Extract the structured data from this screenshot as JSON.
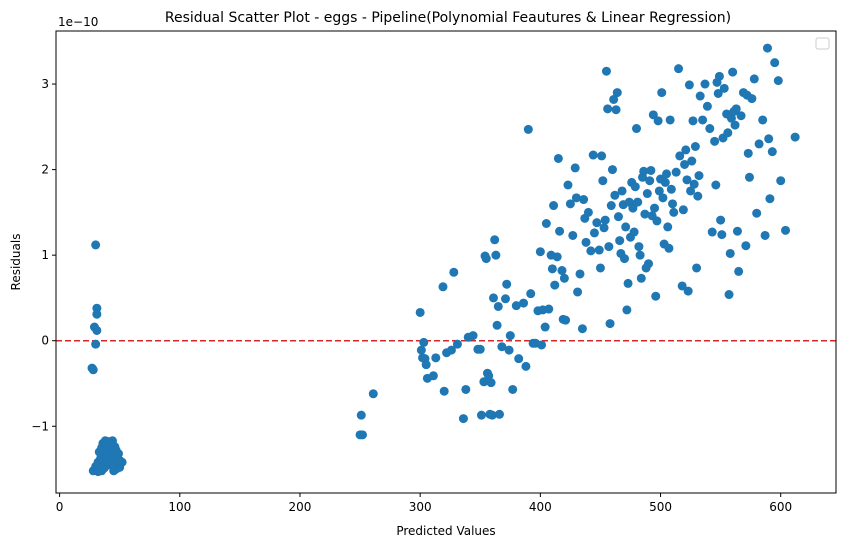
{
  "chart_data": {
    "type": "scatter",
    "title": "Residual Scatter Plot - eggs  - Pipeline(Polynomial Feautures & Linear Regression)",
    "xlabel": "Predicted Values",
    "ylabel": "Residuals",
    "y_offset_label": "1e−10",
    "xlim": [
      -3,
      646
    ],
    "ylim": [
      -1.78,
      3.62
    ],
    "xticks": [
      0,
      100,
      200,
      300,
      400,
      500,
      600
    ],
    "yticks": [
      -1,
      0,
      1,
      2,
      3
    ],
    "xtick_labels": [
      "0",
      "100",
      "200",
      "300",
      "400",
      "500",
      "600"
    ],
    "ytick_labels": [
      "−1",
      "0",
      "1",
      "2",
      "3"
    ],
    "grid": false,
    "legend": "top-right (empty)",
    "marker_color": "#1f77b4",
    "reference_line": {
      "y": 0,
      "color": "#d62728",
      "style": "dashed"
    },
    "points": [
      [
        30,
        1.12
      ],
      [
        31,
        0.38
      ],
      [
        31,
        0.31
      ],
      [
        29,
        0.16
      ],
      [
        31,
        0.12
      ],
      [
        27,
        -0.32
      ],
      [
        28,
        -0.34
      ],
      [
        30,
        -0.04
      ],
      [
        28,
        -1.52
      ],
      [
        30,
        -1.47
      ],
      [
        32,
        -1.42
      ],
      [
        34,
        -1.38
      ],
      [
        36,
        -1.34
      ],
      [
        38,
        -1.3
      ],
      [
        40,
        -1.26
      ],
      [
        42,
        -1.22
      ],
      [
        44,
        -1.2
      ],
      [
        46,
        -1.24
      ],
      [
        31,
        -1.5
      ],
      [
        33,
        -1.46
      ],
      [
        35,
        -1.43
      ],
      [
        37,
        -1.39
      ],
      [
        39,
        -1.35
      ],
      [
        41,
        -1.31
      ],
      [
        43,
        -1.27
      ],
      [
        45,
        -1.33
      ],
      [
        47,
        -1.37
      ],
      [
        32,
        -1.53
      ],
      [
        34,
        -1.5
      ],
      [
        36,
        -1.47
      ],
      [
        38,
        -1.44
      ],
      [
        40,
        -1.41
      ],
      [
        42,
        -1.38
      ],
      [
        44,
        -1.35
      ],
      [
        46,
        -1.41
      ],
      [
        48,
        -1.45
      ],
      [
        35,
        -1.52
      ],
      [
        37,
        -1.49
      ],
      [
        39,
        -1.46
      ],
      [
        41,
        -1.43
      ],
      [
        43,
        -1.4
      ],
      [
        45,
        -1.47
      ],
      [
        47,
        -1.5
      ],
      [
        49,
        -1.44
      ],
      [
        50,
        -1.4
      ],
      [
        36,
        -1.2
      ],
      [
        38,
        -1.17
      ],
      [
        40,
        -1.22
      ],
      [
        42,
        -1.28
      ],
      [
        44,
        -1.17
      ],
      [
        46,
        -1.3
      ],
      [
        48,
        -1.34
      ],
      [
        50,
        -1.48
      ],
      [
        52,
        -1.42
      ],
      [
        33,
        -1.3
      ],
      [
        35,
        -1.25
      ],
      [
        37,
        -1.28
      ],
      [
        39,
        -1.23
      ],
      [
        41,
        -1.18
      ],
      [
        43,
        -1.45
      ],
      [
        45,
        -1.52
      ],
      [
        47,
        -1.28
      ],
      [
        49,
        -1.32
      ],
      [
        251,
        -0.87
      ],
      [
        252,
        -1.1
      ],
      [
        250,
        -1.1
      ],
      [
        261,
        -0.62
      ],
      [
        300,
        0.33
      ],
      [
        301,
        -0.11
      ],
      [
        302,
        -0.2
      ],
      [
        303,
        -0.02
      ],
      [
        304,
        -0.21
      ],
      [
        305,
        -0.28
      ],
      [
        306,
        -0.44
      ],
      [
        311,
        -0.41
      ],
      [
        313,
        -0.2
      ],
      [
        319,
        0.63
      ],
      [
        320,
        -0.59
      ],
      [
        322,
        -0.14
      ],
      [
        326,
        -0.11
      ],
      [
        328,
        0.8
      ],
      [
        331,
        -0.04
      ],
      [
        336,
        -0.91
      ],
      [
        338,
        -0.57
      ],
      [
        340,
        0.04
      ],
      [
        344,
        0.06
      ],
      [
        348,
        -0.1
      ],
      [
        350,
        -0.1
      ],
      [
        351,
        -0.87
      ],
      [
        353,
        -0.48
      ],
      [
        354,
        0.99
      ],
      [
        355,
        0.96
      ],
      [
        356,
        -0.38
      ],
      [
        357,
        -0.41
      ],
      [
        358,
        -0.86
      ],
      [
        359,
        -0.49
      ],
      [
        360,
        -0.87
      ],
      [
        361,
        0.5
      ],
      [
        362,
        1.18
      ],
      [
        363,
        1.0
      ],
      [
        364,
        0.18
      ],
      [
        365,
        0.4
      ],
      [
        366,
        -0.86
      ],
      [
        368,
        -0.07
      ],
      [
        371,
        0.49
      ],
      [
        372,
        0.66
      ],
      [
        374,
        -0.11
      ],
      [
        375,
        0.06
      ],
      [
        377,
        -0.57
      ],
      [
        380,
        0.41
      ],
      [
        382,
        -0.21
      ],
      [
        386,
        0.44
      ],
      [
        388,
        -0.3
      ],
      [
        390,
        2.47
      ],
      [
        392,
        0.55
      ],
      [
        394,
        -0.03
      ],
      [
        396,
        -0.03
      ],
      [
        398,
        0.35
      ],
      [
        400,
        1.04
      ],
      [
        401,
        -0.05
      ],
      [
        402,
        0.36
      ],
      [
        404,
        0.16
      ],
      [
        405,
        1.37
      ],
      [
        407,
        0.37
      ],
      [
        409,
        1.0
      ],
      [
        410,
        0.84
      ],
      [
        411,
        1.58
      ],
      [
        412,
        0.65
      ],
      [
        414,
        0.98
      ],
      [
        415,
        2.13
      ],
      [
        416,
        1.28
      ],
      [
        418,
        0.82
      ],
      [
        419,
        0.25
      ],
      [
        420,
        0.73
      ],
      [
        421,
        0.24
      ],
      [
        423,
        1.82
      ],
      [
        425,
        1.6
      ],
      [
        427,
        1.23
      ],
      [
        429,
        2.02
      ],
      [
        430,
        1.67
      ],
      [
        431,
        0.57
      ],
      [
        433,
        0.78
      ],
      [
        435,
        0.14
      ],
      [
        436,
        1.65
      ],
      [
        437,
        1.43
      ],
      [
        438,
        1.15
      ],
      [
        440,
        1.5
      ],
      [
        442,
        1.05
      ],
      [
        444,
        2.17
      ],
      [
        445,
        1.26
      ],
      [
        447,
        1.38
      ],
      [
        449,
        1.06
      ],
      [
        450,
        0.85
      ],
      [
        451,
        2.16
      ],
      [
        452,
        1.87
      ],
      [
        453,
        1.32
      ],
      [
        454,
        1.41
      ],
      [
        455,
        3.15
      ],
      [
        456,
        2.71
      ],
      [
        457,
        1.1
      ],
      [
        458,
        0.2
      ],
      [
        459,
        1.58
      ],
      [
        460,
        2.0
      ],
      [
        461,
        2.82
      ],
      [
        462,
        1.7
      ],
      [
        463,
        2.7
      ],
      [
        464,
        2.9
      ],
      [
        465,
        1.45
      ],
      [
        466,
        1.17
      ],
      [
        467,
        1.02
      ],
      [
        468,
        1.75
      ],
      [
        469,
        1.59
      ],
      [
        470,
        0.96
      ],
      [
        471,
        1.33
      ],
      [
        472,
        0.36
      ],
      [
        473,
        0.67
      ],
      [
        474,
        1.62
      ],
      [
        475,
        1.21
      ],
      [
        476,
        1.85
      ],
      [
        477,
        1.55
      ],
      [
        478,
        1.27
      ],
      [
        479,
        1.8
      ],
      [
        480,
        2.48
      ],
      [
        481,
        1.62
      ],
      [
        482,
        1.1
      ],
      [
        483,
        1.0
      ],
      [
        484,
        0.73
      ],
      [
        485,
        1.91
      ],
      [
        486,
        1.98
      ],
      [
        487,
        1.48
      ],
      [
        488,
        0.85
      ],
      [
        489,
        1.72
      ],
      [
        490,
        0.9
      ],
      [
        491,
        1.87
      ],
      [
        492,
        1.99
      ],
      [
        493,
        1.46
      ],
      [
        494,
        2.64
      ],
      [
        495,
        1.55
      ],
      [
        496,
        0.52
      ],
      [
        497,
        1.4
      ],
      [
        498,
        2.57
      ],
      [
        499,
        1.75
      ],
      [
        500,
        1.89
      ],
      [
        501,
        2.9
      ],
      [
        502,
        1.67
      ],
      [
        503,
        1.13
      ],
      [
        504,
        1.85
      ],
      [
        505,
        1.95
      ],
      [
        506,
        1.33
      ],
      [
        507,
        1.08
      ],
      [
        508,
        2.58
      ],
      [
        509,
        1.77
      ],
      [
        510,
        1.6
      ],
      [
        511,
        1.5
      ],
      [
        513,
        1.97
      ],
      [
        515,
        3.18
      ],
      [
        516,
        2.16
      ],
      [
        518,
        0.64
      ],
      [
        519,
        1.53
      ],
      [
        520,
        2.06
      ],
      [
        521,
        2.23
      ],
      [
        522,
        1.88
      ],
      [
        523,
        0.58
      ],
      [
        524,
        2.99
      ],
      [
        525,
        1.75
      ],
      [
        526,
        2.1
      ],
      [
        527,
        2.57
      ],
      [
        528,
        1.83
      ],
      [
        529,
        2.27
      ],
      [
        530,
        0.85
      ],
      [
        531,
        1.69
      ],
      [
        532,
        1.93
      ],
      [
        533,
        2.86
      ],
      [
        535,
        2.58
      ],
      [
        537,
        3.0
      ],
      [
        539,
        2.74
      ],
      [
        541,
        2.48
      ],
      [
        543,
        1.27
      ],
      [
        545,
        2.33
      ],
      [
        546,
        1.82
      ],
      [
        547,
        3.02
      ],
      [
        548,
        2.89
      ],
      [
        549,
        3.09
      ],
      [
        550,
        1.41
      ],
      [
        551,
        1.24
      ],
      [
        552,
        2.37
      ],
      [
        553,
        2.95
      ],
      [
        555,
        2.65
      ],
      [
        556,
        2.43
      ],
      [
        557,
        0.54
      ],
      [
        558,
        1.02
      ],
      [
        559,
        2.6
      ],
      [
        560,
        3.14
      ],
      [
        561,
        2.68
      ],
      [
        562,
        2.52
      ],
      [
        563,
        2.71
      ],
      [
        564,
        1.28
      ],
      [
        565,
        0.81
      ],
      [
        567,
        2.63
      ],
      [
        569,
        2.9
      ],
      [
        571,
        1.11
      ],
      [
        572,
        2.87
      ],
      [
        573,
        2.19
      ],
      [
        574,
        1.91
      ],
      [
        576,
        2.83
      ],
      [
        578,
        3.06
      ],
      [
        580,
        1.49
      ],
      [
        582,
        2.3
      ],
      [
        585,
        2.58
      ],
      [
        587,
        1.23
      ],
      [
        589,
        3.42
      ],
      [
        590,
        2.36
      ],
      [
        591,
        1.66
      ],
      [
        593,
        2.21
      ],
      [
        595,
        3.25
      ],
      [
        598,
        3.04
      ],
      [
        600,
        1.87
      ],
      [
        604,
        1.29
      ],
      [
        612,
        2.38
      ]
    ]
  }
}
